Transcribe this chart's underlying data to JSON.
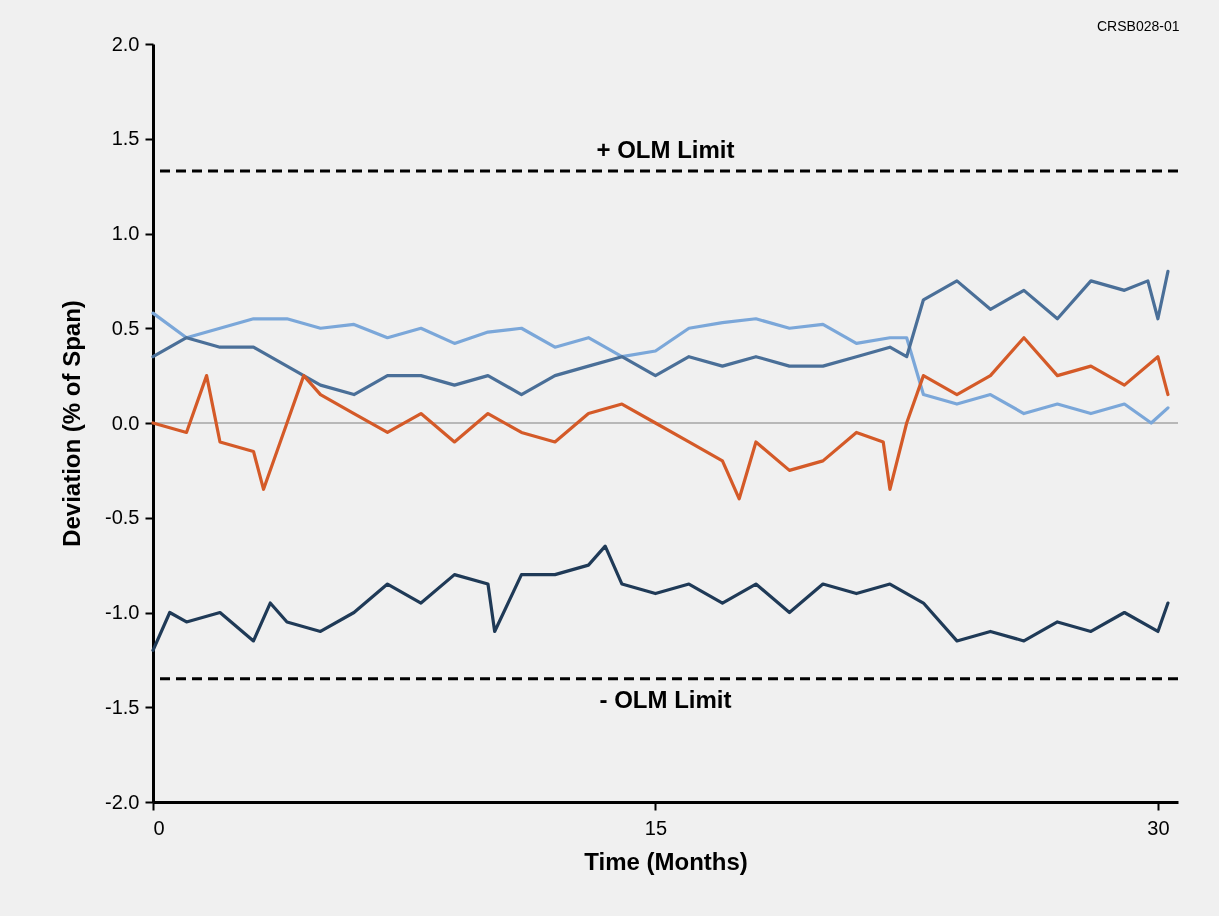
{
  "chart_data": {
    "type": "line",
    "xlabel": "Time (Months)",
    "ylabel": "Deviation (% of Span)",
    "annotations": [
      "CRSB028-01"
    ],
    "xlim": [
      0,
      30.6
    ],
    "xticks": [
      0,
      15,
      30
    ],
    "ylim": [
      -2,
      2
    ],
    "yticks": [
      {
        "value": -2,
        "label": "-2.0"
      },
      -1.5,
      {
        "value": -1,
        "label": "-1.0"
      },
      -0.5,
      {
        "value": 0,
        "label": "0.0"
      },
      0.5,
      {
        "value": 1,
        "label": "1.0"
      },
      1.5,
      {
        "value": 2,
        "label": "2.0"
      }
    ],
    "grid": false,
    "legend": false,
    "marker": "none",
    "line_style": "solid",
    "ref_lines": [
      {
        "axis": "y",
        "value": 1.33,
        "label": "+ OLM Limit",
        "color": "#000000",
        "line_style": "dashed"
      },
      {
        "axis": "y",
        "value": -1.35,
        "label": "- OLM Limit",
        "color": "#000000",
        "line_style": "dashed"
      },
      {
        "axis": "y",
        "value": 0,
        "label": null,
        "color": "#808080",
        "line_style": "solid"
      }
    ],
    "series": [
      {
        "color": "#7ba7d9",
        "x": [
          0,
          1,
          2,
          3,
          4,
          5,
          6,
          7,
          8,
          9,
          10,
          11,
          12,
          13,
          14,
          15,
          16,
          17,
          18,
          19,
          20,
          21,
          22,
          22.5,
          23,
          24,
          25,
          26,
          27,
          28,
          29,
          29.8,
          30.3
        ],
        "values": [
          0.58,
          0.45,
          0.5,
          0.55,
          0.55,
          0.5,
          0.52,
          0.45,
          0.5,
          0.42,
          0.48,
          0.5,
          0.4,
          0.45,
          0.35,
          0.38,
          0.5,
          0.53,
          0.55,
          0.5,
          0.52,
          0.42,
          0.45,
          0.45,
          0.15,
          0.1,
          0.15,
          0.05,
          0.1,
          0.05,
          0.1,
          0.0,
          0.08
        ]
      },
      {
        "color": "#4a6f98",
        "x": [
          0,
          1,
          2,
          3,
          4,
          5,
          6,
          7,
          8,
          9,
          10,
          11,
          12,
          13,
          14,
          15,
          16,
          17,
          18,
          19,
          20,
          21,
          22,
          22.5,
          23,
          24,
          25,
          26,
          27,
          28,
          29,
          29.7,
          30,
          30.3
        ],
        "values": [
          0.35,
          0.45,
          0.4,
          0.4,
          0.3,
          0.2,
          0.15,
          0.25,
          0.25,
          0.2,
          0.25,
          0.15,
          0.25,
          0.3,
          0.35,
          0.25,
          0.35,
          0.3,
          0.35,
          0.3,
          0.3,
          0.35,
          0.4,
          0.35,
          0.65,
          0.75,
          0.6,
          0.7,
          0.55,
          0.75,
          0.7,
          0.75,
          0.55,
          0.8
        ]
      },
      {
        "color": "#d45a28",
        "x": [
          0,
          1,
          1.6,
          2,
          3,
          3.3,
          4,
          4.5,
          5,
          6,
          7,
          8,
          9,
          10,
          11,
          12,
          13,
          14,
          15,
          16,
          17,
          17.5,
          18,
          19,
          20,
          21,
          21.8,
          22,
          22.5,
          23,
          24,
          25,
          26,
          27,
          28,
          29,
          30,
          30.3
        ],
        "values": [
          0,
          -0.05,
          0.25,
          -0.1,
          -0.15,
          -0.35,
          0,
          0.25,
          0.15,
          0.05,
          -0.05,
          0.05,
          -0.1,
          0.05,
          -0.05,
          -0.1,
          0.05,
          0.1,
          0,
          -0.1,
          -0.2,
          -0.4,
          -0.1,
          -0.25,
          -0.2,
          -0.05,
          -0.1,
          -0.35,
          0,
          0.25,
          0.15,
          0.25,
          0.45,
          0.25,
          0.3,
          0.2,
          0.35,
          0.15
        ]
      },
      {
        "color": "#1f3a57",
        "x": [
          0,
          0.5,
          1,
          2,
          3,
          3.5,
          4,
          5,
          6,
          7,
          8,
          9,
          10,
          10.2,
          11,
          12,
          13,
          13.5,
          14,
          15,
          16,
          17,
          18,
          19,
          20,
          21,
          22,
          23,
          24,
          25,
          26,
          27,
          28,
          29,
          30,
          30.3
        ],
        "values": [
          -1.2,
          -1.0,
          -1.05,
          -1.0,
          -1.15,
          -0.95,
          -1.05,
          -1.1,
          -1.0,
          -0.85,
          -0.95,
          -0.8,
          -0.85,
          -1.1,
          -0.8,
          -0.8,
          -0.75,
          -0.65,
          -0.85,
          -0.9,
          -0.85,
          -0.95,
          -0.85,
          -1.0,
          -0.85,
          -0.9,
          -0.85,
          -0.95,
          -1.15,
          -1.1,
          -1.15,
          -1.05,
          -1.1,
          -1.0,
          -1.1,
          -0.95
        ]
      }
    ]
  }
}
